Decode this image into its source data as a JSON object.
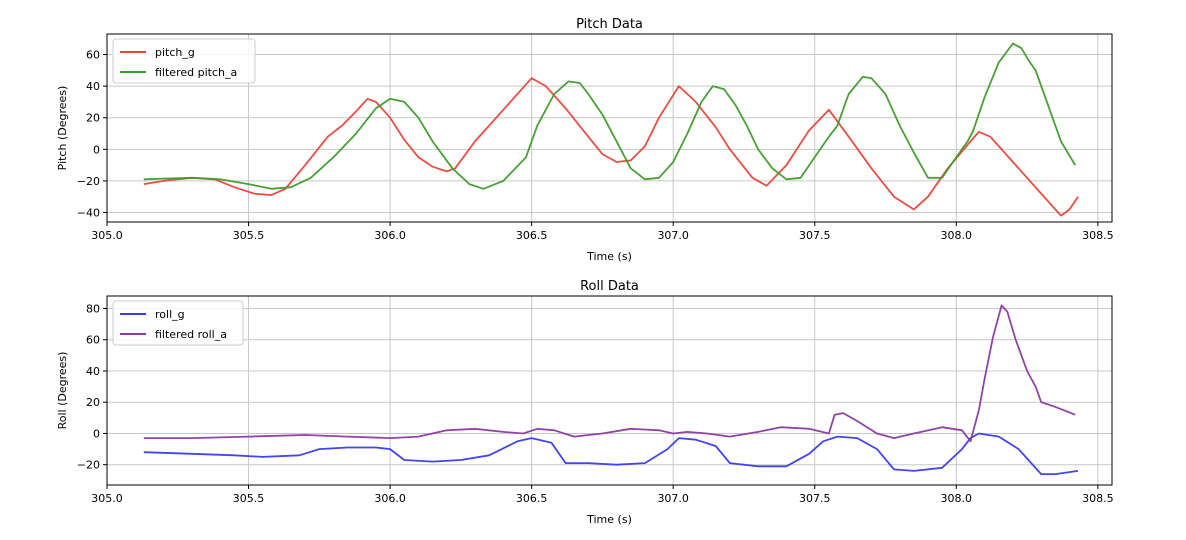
{
  "chart_data": [
    {
      "type": "line",
      "title": "Pitch Data",
      "xlabel": "Time (s)",
      "ylabel": "Pitch (Degrees)",
      "xlim": [
        305.0,
        308.55
      ],
      "ylim": [
        -46,
        73
      ],
      "xticks": [
        305.0,
        305.5,
        306.0,
        306.5,
        307.0,
        307.5,
        308.0,
        308.5
      ],
      "xtick_labels": [
        "305.0",
        "305.5",
        "306.0",
        "306.5",
        "307.0",
        "307.5",
        "308.0",
        "308.5"
      ],
      "yticks": [
        -40,
        -20,
        0,
        20,
        40,
        60
      ],
      "ytick_labels": [
        "−40",
        "−20",
        "0",
        "20",
        "40",
        "60"
      ],
      "grid": true,
      "legend": "upper-left",
      "series": [
        {
          "name": "pitch_g",
          "color": "#e8443a",
          "points": [
            [
              305.13,
              -22
            ],
            [
              305.2,
              -20
            ],
            [
              305.3,
              -18
            ],
            [
              305.38,
              -19
            ],
            [
              305.45,
              -24
            ],
            [
              305.52,
              -28
            ],
            [
              305.58,
              -29
            ],
            [
              305.63,
              -25
            ],
            [
              305.7,
              -10
            ],
            [
              305.78,
              8
            ],
            [
              305.83,
              15
            ],
            [
              305.88,
              24
            ],
            [
              305.92,
              32
            ],
            [
              305.95,
              30
            ],
            [
              306.0,
              20
            ],
            [
              306.05,
              6
            ],
            [
              306.1,
              -5
            ],
            [
              306.15,
              -11
            ],
            [
              306.2,
              -14
            ],
            [
              306.23,
              -12
            ],
            [
              306.3,
              5
            ],
            [
              306.4,
              25
            ],
            [
              306.5,
              45
            ],
            [
              306.55,
              40
            ],
            [
              306.62,
              26
            ],
            [
              306.7,
              8
            ],
            [
              306.75,
              -3
            ],
            [
              306.8,
              -8
            ],
            [
              306.85,
              -7
            ],
            [
              306.9,
              2
            ],
            [
              306.95,
              20
            ],
            [
              307.02,
              40
            ],
            [
              307.08,
              30
            ],
            [
              307.15,
              14
            ],
            [
              307.2,
              0
            ],
            [
              307.28,
              -18
            ],
            [
              307.33,
              -23
            ],
            [
              307.4,
              -10
            ],
            [
              307.48,
              12
            ],
            [
              307.55,
              25
            ],
            [
              307.62,
              8
            ],
            [
              307.7,
              -12
            ],
            [
              307.78,
              -30
            ],
            [
              307.85,
              -38
            ],
            [
              307.9,
              -30
            ],
            [
              307.97,
              -12
            ],
            [
              308.05,
              5
            ],
            [
              308.08,
              11
            ],
            [
              308.12,
              8
            ],
            [
              308.2,
              -8
            ],
            [
              308.3,
              -28
            ],
            [
              308.37,
              -42
            ],
            [
              308.4,
              -38
            ],
            [
              308.43,
              -30
            ]
          ]
        },
        {
          "name": "filtered pitch_a",
          "color": "#3f9b2b",
          "points": [
            [
              305.13,
              -19
            ],
            [
              305.2,
              -18.5
            ],
            [
              305.3,
              -18
            ],
            [
              305.4,
              -19
            ],
            [
              305.5,
              -22
            ],
            [
              305.58,
              -25
            ],
            [
              305.65,
              -24
            ],
            [
              305.72,
              -18
            ],
            [
              305.8,
              -5
            ],
            [
              305.88,
              10
            ],
            [
              305.95,
              26
            ],
            [
              306.0,
              32
            ],
            [
              306.05,
              30
            ],
            [
              306.1,
              20
            ],
            [
              306.15,
              5
            ],
            [
              306.22,
              -12
            ],
            [
              306.28,
              -22
            ],
            [
              306.33,
              -25
            ],
            [
              306.4,
              -20
            ],
            [
              306.48,
              -5
            ],
            [
              306.52,
              15
            ],
            [
              306.58,
              35
            ],
            [
              306.63,
              43
            ],
            [
              306.67,
              42
            ],
            [
              306.7,
              35
            ],
            [
              306.75,
              22
            ],
            [
              306.8,
              5
            ],
            [
              306.85,
              -12
            ],
            [
              306.9,
              -19
            ],
            [
              306.95,
              -18
            ],
            [
              307.0,
              -8
            ],
            [
              307.05,
              10
            ],
            [
              307.1,
              30
            ],
            [
              307.14,
              40
            ],
            [
              307.18,
              38
            ],
            [
              307.22,
              28
            ],
            [
              307.26,
              15
            ],
            [
              307.3,
              0
            ],
            [
              307.35,
              -12
            ],
            [
              307.4,
              -19
            ],
            [
              307.45,
              -18
            ],
            [
              307.5,
              -5
            ],
            [
              307.55,
              8
            ],
            [
              307.58,
              15
            ],
            [
              307.62,
              35
            ],
            [
              307.67,
              46
            ],
            [
              307.7,
              45
            ],
            [
              307.75,
              35
            ],
            [
              307.8,
              15
            ],
            [
              307.85,
              -2
            ],
            [
              307.9,
              -18
            ],
            [
              307.95,
              -18
            ],
            [
              308.0,
              -5
            ],
            [
              308.04,
              5
            ],
            [
              308.06,
              12
            ],
            [
              308.1,
              33
            ],
            [
              308.15,
              55
            ],
            [
              308.2,
              67
            ],
            [
              308.23,
              64
            ],
            [
              308.26,
              55
            ],
            [
              308.28,
              50
            ],
            [
              308.32,
              30
            ],
            [
              308.37,
              5
            ],
            [
              308.42,
              -10
            ]
          ]
        }
      ]
    },
    {
      "type": "line",
      "title": "Roll Data",
      "xlabel": "Time (s)",
      "ylabel": "Roll (Degrees)",
      "xlim": [
        305.0,
        308.55
      ],
      "ylim": [
        -33,
        88
      ],
      "xticks": [
        305.0,
        305.5,
        306.0,
        306.5,
        307.0,
        307.5,
        308.0,
        308.5
      ],
      "xtick_labels": [
        "305.0",
        "305.5",
        "306.0",
        "306.5",
        "307.0",
        "307.5",
        "308.0",
        "308.5"
      ],
      "yticks": [
        -20,
        0,
        20,
        40,
        60,
        80
      ],
      "ytick_labels": [
        "−20",
        "0",
        "20",
        "40",
        "60",
        "80"
      ],
      "grid": true,
      "legend": "upper-left",
      "series": [
        {
          "name": "roll_g",
          "color": "#3a3af0",
          "points": [
            [
              305.13,
              -12
            ],
            [
              305.3,
              -13
            ],
            [
              305.45,
              -14
            ],
            [
              305.55,
              -15
            ],
            [
              305.68,
              -14
            ],
            [
              305.75,
              -10
            ],
            [
              305.85,
              -9
            ],
            [
              305.95,
              -9
            ],
            [
              306.0,
              -10
            ],
            [
              306.05,
              -17
            ],
            [
              306.15,
              -18
            ],
            [
              306.25,
              -17
            ],
            [
              306.35,
              -14
            ],
            [
              306.45,
              -5
            ],
            [
              306.5,
              -3
            ],
            [
              306.57,
              -6
            ],
            [
              306.62,
              -19
            ],
            [
              306.7,
              -19
            ],
            [
              306.8,
              -20
            ],
            [
              306.9,
              -19
            ],
            [
              306.98,
              -10
            ],
            [
              307.02,
              -3
            ],
            [
              307.08,
              -4
            ],
            [
              307.15,
              -8
            ],
            [
              307.2,
              -19
            ],
            [
              307.3,
              -21
            ],
            [
              307.4,
              -21
            ],
            [
              307.48,
              -13
            ],
            [
              307.53,
              -5
            ],
            [
              307.58,
              -2
            ],
            [
              307.65,
              -3
            ],
            [
              307.72,
              -10
            ],
            [
              307.78,
              -23
            ],
            [
              307.85,
              -24
            ],
            [
              307.95,
              -22
            ],
            [
              308.02,
              -10
            ],
            [
              308.05,
              -3
            ],
            [
              308.08,
              0
            ],
            [
              308.15,
              -2
            ],
            [
              308.22,
              -10
            ],
            [
              308.3,
              -26
            ],
            [
              308.35,
              -26
            ],
            [
              308.43,
              -24
            ]
          ]
        },
        {
          "name": "filtered roll_a",
          "color": "#8b3aa0",
          "points": [
            [
              305.13,
              -3
            ],
            [
              305.3,
              -3
            ],
            [
              305.5,
              -2
            ],
            [
              305.7,
              -1
            ],
            [
              305.85,
              -2
            ],
            [
              306.0,
              -3
            ],
            [
              306.1,
              -2
            ],
            [
              306.2,
              2
            ],
            [
              306.3,
              3
            ],
            [
              306.4,
              1
            ],
            [
              306.47,
              0
            ],
            [
              306.52,
              3
            ],
            [
              306.58,
              2
            ],
            [
              306.65,
              -2
            ],
            [
              306.75,
              0
            ],
            [
              306.85,
              3
            ],
            [
              306.95,
              2
            ],
            [
              307.0,
              0
            ],
            [
              307.05,
              1
            ],
            [
              307.12,
              0
            ],
            [
              307.2,
              -2
            ],
            [
              307.3,
              1
            ],
            [
              307.38,
              4
            ],
            [
              307.48,
              3
            ],
            [
              307.55,
              0
            ],
            [
              307.57,
              12
            ],
            [
              307.6,
              13
            ],
            [
              307.65,
              8
            ],
            [
              307.72,
              0
            ],
            [
              307.78,
              -3
            ],
            [
              307.85,
              0
            ],
            [
              307.95,
              4
            ],
            [
              308.02,
              2
            ],
            [
              308.05,
              -5
            ],
            [
              308.08,
              15
            ],
            [
              308.1,
              35
            ],
            [
              308.13,
              62
            ],
            [
              308.16,
              82
            ],
            [
              308.18,
              78
            ],
            [
              308.21,
              60
            ],
            [
              308.25,
              40
            ],
            [
              308.28,
              30
            ],
            [
              308.3,
              20
            ],
            [
              308.35,
              17
            ],
            [
              308.42,
              12
            ]
          ]
        }
      ]
    }
  ]
}
